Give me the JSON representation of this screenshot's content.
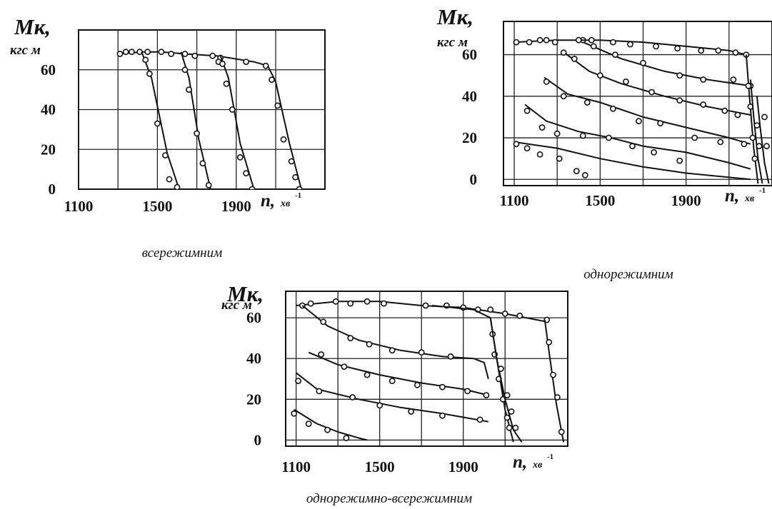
{
  "chart_data": [
    {
      "type": "line",
      "title": "",
      "caption": "всережимним",
      "ylabel": "Mк,",
      "yunit": "кгс м",
      "xlabel": "n,",
      "xunit": "хв",
      "xunit_sup": "-1",
      "x_ticks": [
        "1100",
        "1500",
        "1900"
      ],
      "y_ticks": [
        "0",
        "20",
        "40",
        "60"
      ],
      "xlim": [
        1100,
        2350
      ],
      "ylim": [
        0,
        80
      ],
      "grid": true,
      "series": [
        {
          "x": [
            1310,
            1420,
            1520,
            1640,
            1800,
            1990,
            2060
          ],
          "y": [
            68,
            69,
            69,
            68,
            67,
            64,
            62
          ],
          "points": [
            [
              1310,
              68
            ],
            [
              1340,
              69
            ],
            [
              1370,
              69
            ],
            [
              1410,
              69
            ],
            [
              1450,
              69
            ],
            [
              1520,
              69
            ],
            [
              1570,
              68
            ],
            [
              1640,
              68
            ],
            [
              1690,
              67
            ],
            [
              1780,
              67
            ],
            [
              1820,
              66
            ],
            [
              1950,
              64
            ],
            [
              2050,
              62
            ]
          ]
        },
        {
          "x": [
            1420,
            1470,
            1550,
            1610
          ],
          "y": [
            69,
            56,
            18,
            0
          ],
          "points": [
            [
              1440,
              65
            ],
            [
              1460,
              58
            ],
            [
              1500,
              33
            ],
            [
              1540,
              17
            ],
            [
              1560,
              5
            ],
            [
              1600,
              1
            ]
          ]
        },
        {
          "x": [
            1620,
            1660,
            1710,
            1770
          ],
          "y": [
            69,
            56,
            25,
            0
          ],
          "points": [
            [
              1640,
              60
            ],
            [
              1660,
              50
            ],
            [
              1700,
              28
            ],
            [
              1730,
              13
            ],
            [
              1760,
              2
            ]
          ]
        },
        {
          "x": [
            1820,
            1860,
            1920,
            1990
          ],
          "y": [
            67,
            56,
            23,
            0
          ],
          "points": [
            [
              1810,
              64
            ],
            [
              1830,
              63
            ],
            [
              1850,
              53
            ],
            [
              1880,
              40
            ],
            [
              1920,
              16
            ],
            [
              1950,
              8
            ],
            [
              1980,
              0
            ]
          ]
        },
        {
          "x": [
            2060,
            2100,
            2170,
            2230
          ],
          "y": [
            62,
            54,
            23,
            0
          ],
          "points": [
            [
              2080,
              55
            ],
            [
              2110,
              42
            ],
            [
              2140,
              25
            ],
            [
              2180,
              14
            ],
            [
              2200,
              6
            ],
            [
              2220,
              0
            ]
          ]
        }
      ]
    },
    {
      "type": "line",
      "title": "",
      "caption": "однорежимним",
      "ylabel": "Mк,",
      "yunit": "кгс м",
      "xlabel": "n,",
      "xunit": "хв",
      "xunit_sup": "-1",
      "x_ticks": [
        "1100",
        "1500",
        "1900"
      ],
      "y_ticks": [
        "0",
        "20",
        "40",
        "60"
      ],
      "xlim": [
        1050,
        2300
      ],
      "ylim": [
        -3,
        76
      ],
      "grid": true,
      "series": [
        {
          "x": [
            1100,
            1300,
            1500,
            1700,
            1900,
            2100,
            2200
          ],
          "y": [
            18,
            15,
            10,
            6,
            3,
            1,
            0
          ],
          "points": [
            [
              1110,
              17
            ],
            [
              1160,
              15
            ],
            [
              1220,
              12
            ],
            [
              1310,
              10
            ],
            [
              1390,
              4
            ],
            [
              1430,
              2
            ]
          ]
        },
        {
          "x": [
            1150,
            1250,
            1400,
            1550,
            1700,
            1900,
            2100,
            2200
          ],
          "y": [
            36,
            28,
            23,
            20,
            16,
            13,
            8,
            5
          ],
          "points": [
            [
              1160,
              33
            ],
            [
              1230,
              25
            ],
            [
              1300,
              22
            ],
            [
              1420,
              21
            ],
            [
              1540,
              20
            ],
            [
              1650,
              16
            ],
            [
              1750,
              13
            ],
            [
              1870,
              9
            ]
          ]
        },
        {
          "x": [
            1240,
            1350,
            1500,
            1700,
            1900,
            2100,
            2200
          ],
          "y": [
            49,
            41,
            37,
            30,
            25,
            20,
            17
          ],
          "points": [
            [
              1250,
              47
            ],
            [
              1330,
              40
            ],
            [
              1440,
              37
            ],
            [
              1560,
              34
            ],
            [
              1680,
              28
            ],
            [
              1780,
              27
            ],
            [
              1940,
              20
            ],
            [
              2060,
              18
            ],
            [
              2170,
              17
            ]
          ]
        },
        {
          "x": [
            1320,
            1450,
            1600,
            1800,
            2000,
            2200
          ],
          "y": [
            62,
            52,
            46,
            40,
            35,
            31
          ],
          "points": [
            [
              1330,
              61
            ],
            [
              1380,
              58
            ],
            [
              1500,
              50
            ],
            [
              1620,
              47
            ],
            [
              1740,
              42
            ],
            [
              1870,
              38
            ],
            [
              1980,
              36
            ],
            [
              2080,
              33
            ],
            [
              2140,
              31
            ]
          ]
        },
        {
          "x": [
            1420,
            1600,
            1800,
            2000,
            2200
          ],
          "y": [
            66,
            58,
            52,
            48,
            45
          ],
          "points": [
            [
              1420,
              67
            ],
            [
              1470,
              64
            ],
            [
              1570,
              60
            ],
            [
              1700,
              56
            ],
            [
              1870,
              50
            ],
            [
              1980,
              48
            ],
            [
              2120,
              48
            ],
            [
              2200,
              45
            ]
          ]
        },
        {
          "x": [
            1100,
            1300,
            1500,
            1700,
            1900,
            2100,
            2180
          ],
          "y": [
            66,
            67,
            67,
            66,
            64,
            62,
            60
          ],
          "points": [
            [
              1110,
              66
            ],
            [
              1170,
              66
            ],
            [
              1220,
              67
            ],
            [
              1250,
              67
            ],
            [
              1290,
              66
            ],
            [
              1400,
              67
            ],
            [
              1460,
              67
            ],
            [
              1560,
              66
            ],
            [
              1640,
              65
            ],
            [
              1760,
              64
            ],
            [
              1860,
              63
            ],
            [
              1970,
              62
            ],
            [
              2050,
              62
            ],
            [
              2130,
              61
            ],
            [
              2180,
              60
            ]
          ]
        },
        {
          "x": [
            2180,
            2195,
            2215,
            2235
          ],
          "y": [
            60,
            40,
            15,
            -2
          ],
          "points": [
            [
              2190,
              45
            ],
            [
              2200,
              35
            ],
            [
              2210,
              20
            ],
            [
              2220,
              10
            ]
          ]
        },
        {
          "x": [
            2200,
            2215,
            2235,
            2255
          ],
          "y": [
            48,
            30,
            10,
            -2
          ],
          "points": [
            [
              2230,
              26
            ],
            [
              2240,
              16
            ]
          ]
        },
        {
          "x": [
            2230,
            2245,
            2265,
            2285
          ],
          "y": [
            40,
            25,
            8,
            -2
          ],
          "points": [
            [
              2265,
              30
            ],
            [
              2275,
              16
            ]
          ]
        }
      ]
    },
    {
      "type": "line",
      "title": "",
      "caption": "однорежимно-всережимним",
      "ylabel": "Mк,",
      "yunit": "кгс м",
      "xlabel": "n,",
      "xunit": "хв",
      "xunit_sup": "-1",
      "x_ticks": [
        "1100",
        "1500",
        "1900"
      ],
      "y_ticks": [
        "0",
        "20",
        "40",
        "60"
      ],
      "xlim": [
        1050,
        2400
      ],
      "ylim": [
        -3,
        73
      ],
      "grid": true,
      "series": [
        {
          "x": [
            1100,
            1300,
            1500,
            1700,
            1900,
            2100,
            2300
          ],
          "y": [
            66,
            68,
            68,
            66,
            65,
            62,
            58
          ],
          "points": [
            [
              1130,
              66
            ],
            [
              1170,
              67
            ],
            [
              1290,
              68
            ],
            [
              1360,
              67
            ],
            [
              1440,
              68
            ],
            [
              1520,
              67
            ],
            [
              1720,
              66
            ],
            [
              1820,
              66
            ],
            [
              1900,
              65
            ],
            [
              1970,
              64
            ],
            [
              2030,
              64
            ],
            [
              2100,
              62
            ],
            [
              2170,
              61
            ],
            [
              2300,
              59
            ]
          ]
        },
        {
          "x": [
            1130,
            1250,
            1400,
            1600,
            1800,
            1950,
            2000,
            2020
          ],
          "y": [
            66,
            56,
            49,
            44,
            41,
            40,
            38,
            30
          ],
          "points": [
            [
              1230,
              58
            ],
            [
              1360,
              50
            ],
            [
              1450,
              47
            ],
            [
              1560,
              44
            ],
            [
              1700,
              43
            ],
            [
              1840,
              41
            ]
          ]
        },
        {
          "x": [
            1160,
            1300,
            1500,
            1700,
            1900,
            2020
          ],
          "y": [
            43,
            37,
            32,
            28,
            25,
            22
          ],
          "points": [
            [
              1220,
              42
            ],
            [
              1330,
              36
            ],
            [
              1440,
              32
            ],
            [
              1560,
              29
            ],
            [
              1680,
              27
            ],
            [
              1800,
              26
            ],
            [
              1920,
              24
            ],
            [
              2010,
              22
            ]
          ]
        },
        {
          "x": [
            1100,
            1200,
            1400,
            1600,
            1800,
            2020
          ],
          "y": [
            33,
            25,
            20,
            16,
            13,
            9
          ],
          "points": [
            [
              1110,
              29
            ],
            [
              1210,
              24
            ],
            [
              1370,
              21
            ],
            [
              1500,
              17
            ],
            [
              1650,
              14
            ],
            [
              1800,
              12
            ],
            [
              1980,
              10
            ]
          ]
        },
        {
          "x": [
            1090,
            1200,
            1300,
            1400,
            1440
          ],
          "y": [
            15,
            8,
            4,
            1,
            0
          ],
          "points": [
            [
              1090,
              13
            ],
            [
              1160,
              8
            ],
            [
              1250,
              5
            ],
            [
              1340,
              1
            ]
          ]
        },
        {
          "x": [
            1750,
            1950,
            2030,
            2060,
            2100,
            2140
          ],
          "y": [
            66,
            64,
            60,
            40,
            15,
            -1
          ],
          "points": [
            [
              2040,
              52
            ],
            [
              2050,
              42
            ],
            [
              2070,
              30
            ],
            [
              2090,
              20
            ],
            [
              2110,
              11
            ],
            [
              2120,
              6
            ]
          ]
        },
        {
          "x": [
            2030,
            2060,
            2100,
            2140,
            2180
          ],
          "y": [
            60,
            40,
            20,
            5,
            -1
          ],
          "points": [
            [
              2080,
              35
            ],
            [
              2110,
              22
            ],
            [
              2130,
              14
            ],
            [
              2150,
              6
            ]
          ]
        },
        {
          "x": [
            2290,
            2315,
            2345,
            2380
          ],
          "y": [
            59,
            40,
            18,
            -1
          ],
          "points": [
            [
              2310,
              48
            ],
            [
              2330,
              32
            ],
            [
              2350,
              21
            ],
            [
              2370,
              4
            ]
          ]
        }
      ]
    }
  ]
}
